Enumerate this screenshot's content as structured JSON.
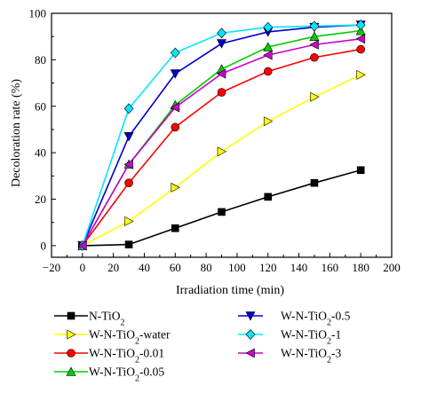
{
  "chart_data": {
    "type": "line",
    "xlabel": "Irradiation time (min)",
    "ylabel": "Decoloration rate (%)",
    "xlim": [
      -20,
      200
    ],
    "ylim": [
      -5,
      100
    ],
    "xticks": [
      -20,
      0,
      20,
      40,
      60,
      80,
      100,
      120,
      140,
      160,
      180,
      200
    ],
    "yticks": [
      0,
      20,
      40,
      60,
      80,
      100
    ],
    "x": [
      0,
      30,
      60,
      90,
      120,
      150,
      180
    ],
    "legend_position": "bottom",
    "series": [
      {
        "name": "N-TiO",
        "sub": "2",
        "suffix": "",
        "color": "#000000",
        "marker": "square",
        "values": [
          0,
          0.5,
          7.5,
          14.5,
          21,
          27,
          32.5
        ]
      },
      {
        "name": "W-N-TiO",
        "sub": "2",
        "suffix": "-water",
        "color": "#ffff00",
        "marker": "triangle-right",
        "values": [
          0,
          10.5,
          25,
          40.5,
          53.5,
          64,
          73.5
        ]
      },
      {
        "name": "W-N-TiO",
        "sub": "2",
        "suffix": "-0.01",
        "color": "#ff0000",
        "marker": "circle",
        "values": [
          0,
          27,
          51,
          66,
          75,
          81,
          84.5
        ]
      },
      {
        "name": "W-N-TiO",
        "sub": "2",
        "suffix": "-0.05",
        "color": "#00cc00",
        "marker": "triangle-up",
        "values": [
          0,
          35,
          60.5,
          76,
          85.5,
          90,
          92.5
        ]
      },
      {
        "name": "W-N-TiO",
        "sub": "2",
        "suffix": "-0.5",
        "color": "#0000cc",
        "marker": "triangle-down",
        "values": [
          0,
          47,
          74,
          87,
          92,
          94,
          95
        ]
      },
      {
        "name": "W-N-TiO",
        "sub": "2",
        "suffix": "-1",
        "color": "#00e5ff",
        "marker": "diamond",
        "values": [
          0,
          59,
          83,
          91.5,
          94,
          94.5,
          95
        ]
      },
      {
        "name": "W-N-TiO",
        "sub": "2",
        "suffix": "-3",
        "color": "#cc00cc",
        "marker": "triangle-left",
        "values": [
          0,
          35,
          59.5,
          74,
          82,
          86.5,
          89
        ]
      }
    ]
  }
}
